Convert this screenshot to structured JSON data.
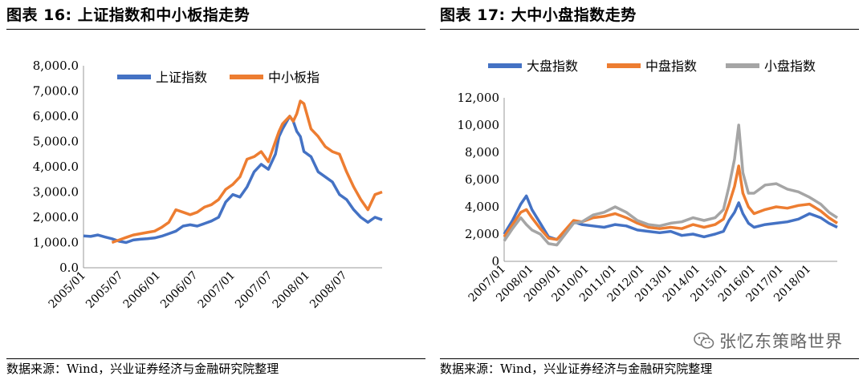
{
  "left": {
    "title": "图表 16:  上证指数和中小板指走势",
    "source": "数据来源：Wind，兴业证券经济与金融研究院整理"
  },
  "right": {
    "title": "图表 17:  大中小盘指数走势",
    "source": "数据来源：Wind，兴业证券经济与金融研究院整理"
  },
  "watermark": {
    "text": "张忆东策略世界",
    "icon": "wechat-icon"
  },
  "chart_data": [
    {
      "type": "line",
      "ylim": [
        0,
        8000
      ],
      "yticks": [
        "0.0",
        "1,000.0",
        "2,000.0",
        "3,000.0",
        "4,000.0",
        "5,000.0",
        "6,000.0",
        "7,000.0",
        "8,000.0"
      ],
      "xticks": [
        "2005/01",
        "2005/07",
        "2006/01",
        "2006/07",
        "2007/01",
        "2007/07",
        "2008/01",
        "2008/07"
      ],
      "xrange": [
        2005.0,
        2009.2
      ],
      "legend_position": "top",
      "series": [
        {
          "name": "上证指数",
          "color": "#4472C4",
          "x": [
            2005.0,
            2005.1,
            2005.2,
            2005.3,
            2005.4,
            2005.5,
            2005.6,
            2005.7,
            2005.8,
            2005.9,
            2006.0,
            2006.1,
            2006.2,
            2006.3,
            2006.4,
            2006.5,
            2006.6,
            2006.7,
            2006.8,
            2006.9,
            2007.0,
            2007.1,
            2007.2,
            2007.3,
            2007.4,
            2007.5,
            2007.6,
            2007.7,
            2007.75,
            2007.8,
            2007.9,
            2007.95,
            2008.0,
            2008.05,
            2008.1,
            2008.2,
            2008.3,
            2008.4,
            2008.5,
            2008.6,
            2008.7,
            2008.8,
            2008.9,
            2009.0,
            2009.1,
            2009.2
          ],
          "y": [
            1260,
            1240,
            1300,
            1220,
            1150,
            1050,
            1000,
            1100,
            1130,
            1150,
            1180,
            1250,
            1350,
            1450,
            1650,
            1700,
            1650,
            1750,
            1850,
            2000,
            2600,
            2900,
            2800,
            3200,
            3800,
            4100,
            3900,
            4500,
            5200,
            5500,
            6000,
            5800,
            5400,
            5200,
            4600,
            4400,
            3800,
            3600,
            3400,
            2900,
            2700,
            2300,
            2000,
            1800,
            2000,
            1900
          ]
        },
        {
          "name": "中小板指",
          "color": "#ED7D31",
          "x": [
            2005.4,
            2005.5,
            2005.6,
            2005.7,
            2005.8,
            2005.9,
            2006.0,
            2006.1,
            2006.2,
            2006.3,
            2006.4,
            2006.5,
            2006.6,
            2006.7,
            2006.8,
            2006.9,
            2007.0,
            2007.1,
            2007.2,
            2007.3,
            2007.4,
            2007.5,
            2007.6,
            2007.7,
            2007.75,
            2007.8,
            2007.9,
            2007.95,
            2008.0,
            2008.05,
            2008.1,
            2008.15,
            2008.2,
            2008.3,
            2008.4,
            2008.5,
            2008.6,
            2008.7,
            2008.8,
            2008.9,
            2009.0,
            2009.1,
            2009.2
          ],
          "y": [
            1000,
            1100,
            1200,
            1300,
            1350,
            1400,
            1450,
            1600,
            1800,
            2300,
            2200,
            2100,
            2200,
            2400,
            2500,
            2700,
            3100,
            3300,
            3600,
            4300,
            4400,
            4600,
            4200,
            5000,
            5400,
            5700,
            6000,
            5800,
            6100,
            6600,
            6500,
            6000,
            5500,
            5200,
            4800,
            4600,
            4500,
            3800,
            3200,
            2700,
            2300,
            2900,
            3000
          ]
        }
      ]
    },
    {
      "type": "line",
      "ylim": [
        0,
        12000
      ],
      "yticks": [
        "0",
        "2,000",
        "4,000",
        "6,000",
        "8,000",
        "10,000",
        "12,000"
      ],
      "xticks": [
        "2007/01",
        "2008/01",
        "2009/01",
        "2010/01",
        "2011/01",
        "2012/01",
        "2013/01",
        "2014/01",
        "2015/01",
        "2016/01",
        "2017/01",
        "2018/01"
      ],
      "xrange": [
        2007.0,
        2019.0
      ],
      "legend_position": "top",
      "series": [
        {
          "name": "大盘指数",
          "color": "#4472C4",
          "x": [
            2007.0,
            2007.3,
            2007.6,
            2007.8,
            2008.0,
            2008.3,
            2008.6,
            2008.9,
            2009.2,
            2009.5,
            2009.8,
            2010.2,
            2010.6,
            2011.0,
            2011.4,
            2011.8,
            2012.2,
            2012.6,
            2013.0,
            2013.4,
            2013.8,
            2014.2,
            2014.6,
            2014.9,
            2015.1,
            2015.3,
            2015.45,
            2015.6,
            2015.8,
            2016.0,
            2016.4,
            2016.8,
            2017.2,
            2017.6,
            2018.0,
            2018.4,
            2018.7,
            2019.0
          ],
          "y": [
            2000,
            3000,
            4200,
            4800,
            3800,
            2800,
            1800,
            1600,
            2200,
            2900,
            2700,
            2600,
            2500,
            2700,
            2600,
            2300,
            2200,
            2100,
            2200,
            1900,
            2000,
            1800,
            2000,
            2200,
            3000,
            3600,
            4300,
            3500,
            2800,
            2500,
            2700,
            2800,
            2900,
            3100,
            3500,
            3200,
            2800,
            2500
          ]
        },
        {
          "name": "中盘指数",
          "color": "#ED7D31",
          "x": [
            2007.0,
            2007.3,
            2007.6,
            2007.8,
            2008.0,
            2008.3,
            2008.6,
            2008.9,
            2009.2,
            2009.5,
            2009.8,
            2010.2,
            2010.6,
            2011.0,
            2011.4,
            2011.8,
            2012.2,
            2012.6,
            2013.0,
            2013.4,
            2013.8,
            2014.2,
            2014.6,
            2014.9,
            2015.1,
            2015.3,
            2015.45,
            2015.6,
            2015.8,
            2016.0,
            2016.4,
            2016.8,
            2017.2,
            2017.6,
            2018.0,
            2018.4,
            2018.7,
            2019.0
          ],
          "y": [
            1800,
            2700,
            3600,
            3800,
            3200,
            2400,
            1700,
            1600,
            2300,
            3000,
            2900,
            3200,
            3300,
            3500,
            3200,
            2800,
            2500,
            2400,
            2500,
            2400,
            2700,
            2500,
            2700,
            3100,
            4200,
            5500,
            7000,
            5000,
            4000,
            3500,
            3800,
            4000,
            3900,
            4100,
            4200,
            3700,
            3200,
            2800
          ]
        },
        {
          "name": "小盘指数",
          "color": "#A5A5A5",
          "x": [
            2007.0,
            2007.3,
            2007.6,
            2007.8,
            2008.0,
            2008.3,
            2008.6,
            2008.9,
            2009.2,
            2009.5,
            2009.8,
            2010.2,
            2010.6,
            2011.0,
            2011.4,
            2011.8,
            2012.2,
            2012.6,
            2013.0,
            2013.4,
            2013.8,
            2014.2,
            2014.6,
            2014.9,
            2015.1,
            2015.3,
            2015.45,
            2015.6,
            2015.8,
            2016.0,
            2016.4,
            2016.8,
            2017.2,
            2017.6,
            2018.0,
            2018.4,
            2018.7,
            2019.0
          ],
          "y": [
            1500,
            2400,
            3200,
            2700,
            2300,
            2000,
            1300,
            1200,
            2000,
            2800,
            2900,
            3400,
            3600,
            4000,
            3600,
            3000,
            2700,
            2600,
            2800,
            2900,
            3200,
            3000,
            3200,
            3800,
            5500,
            7500,
            10000,
            6500,
            5000,
            5000,
            5600,
            5700,
            5300,
            5100,
            4700,
            4200,
            3600,
            3200
          ]
        }
      ]
    }
  ]
}
